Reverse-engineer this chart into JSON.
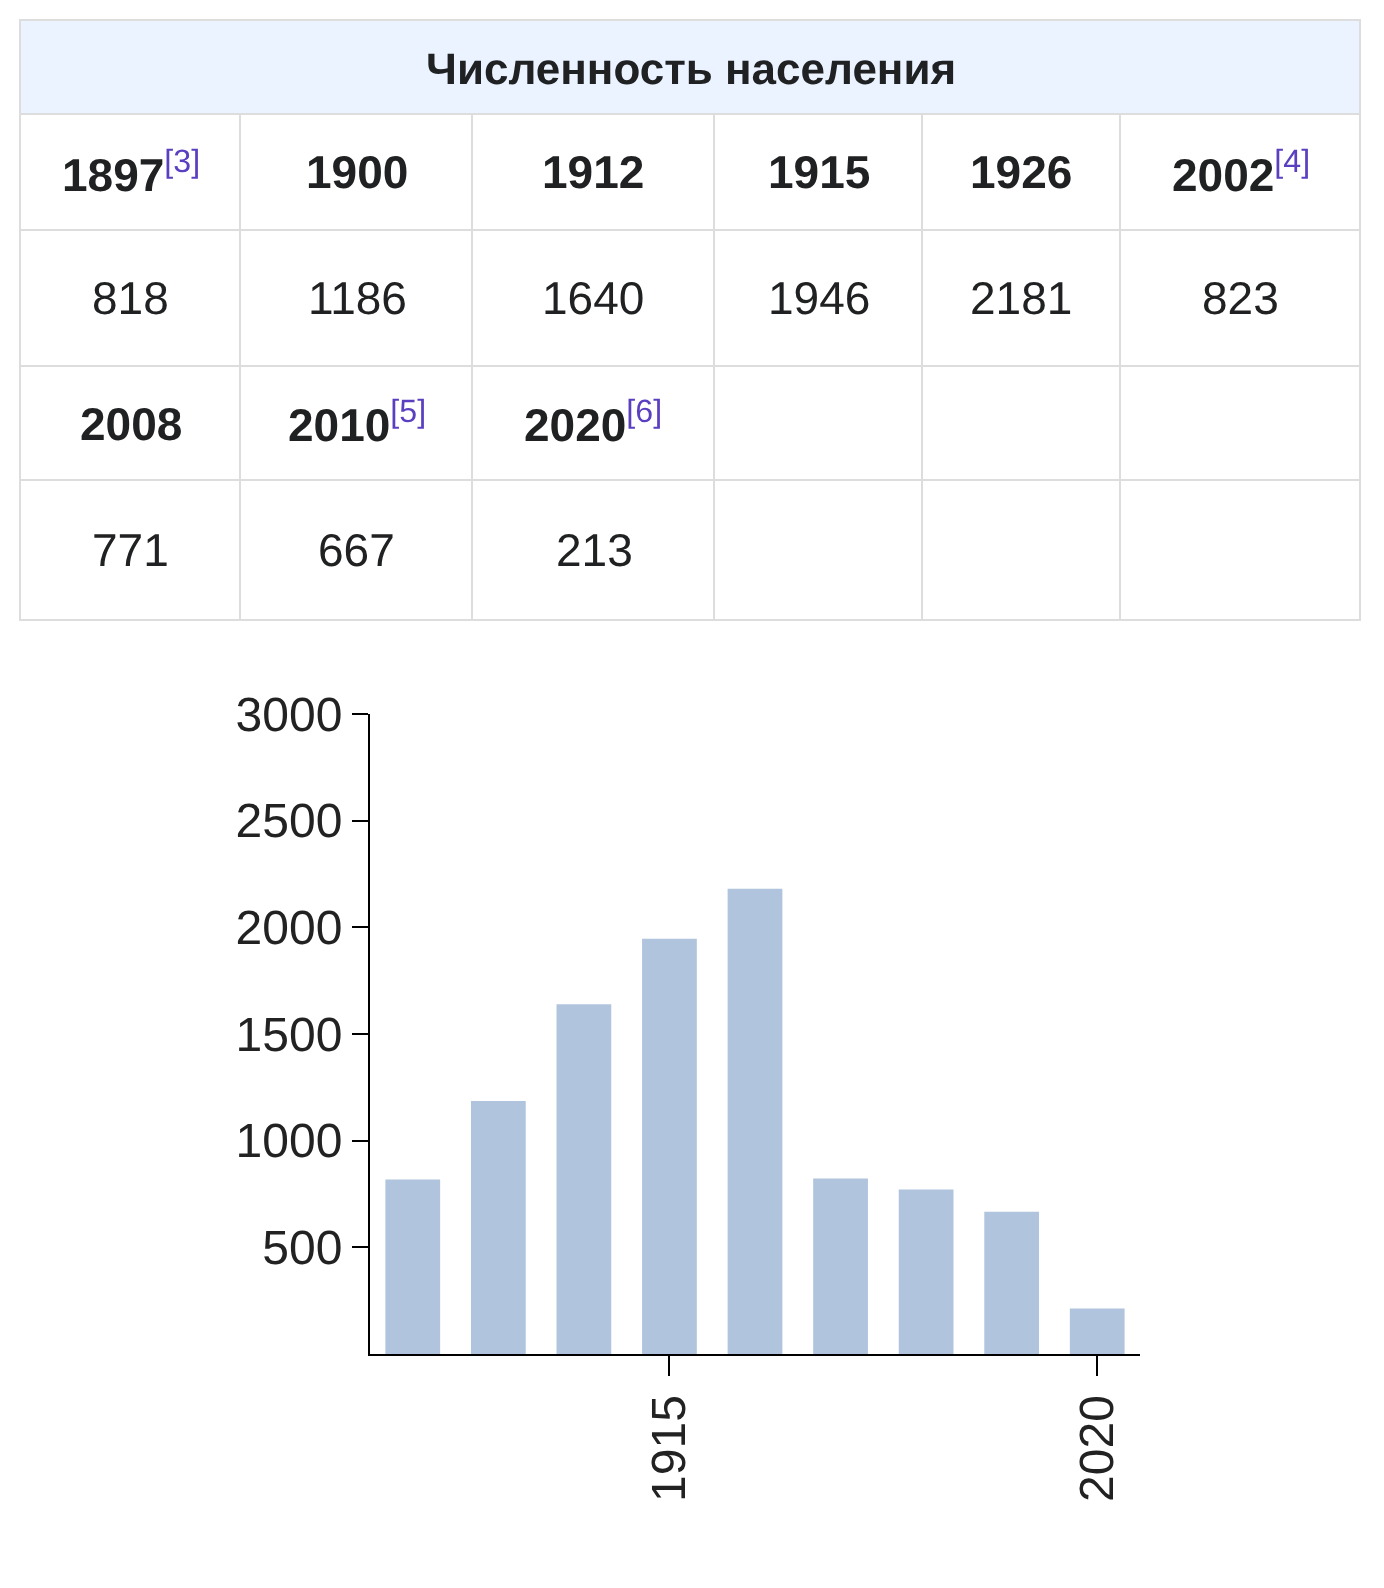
{
  "chart_data": {
    "type": "bar",
    "title": "Численность населения",
    "categories": [
      null,
      null,
      null,
      "1915",
      null,
      null,
      null,
      null,
      "2020"
    ],
    "values": [
      818,
      1186,
      1640,
      1946,
      2181,
      823,
      771,
      667,
      213
    ],
    "annotations": [
      "1897$^{[3]}$",
      "1900",
      "1912",
      "1915",
      "1926",
      "2002$^{[4]}$",
      "818",
      "1186",
      "1640",
      "1946",
      "2181",
      "823",
      "2008",
      "2010$^{[5]}$",
      "2020$^{[6]}$",
      "771",
      "667",
      "213"
    ],
    "color": "#b0c4de",
    "ylim": [
      0,
      3000
    ],
    "yticks": [
      500,
      1000,
      1500,
      2000,
      2500,
      3000
    ]
  }
}
